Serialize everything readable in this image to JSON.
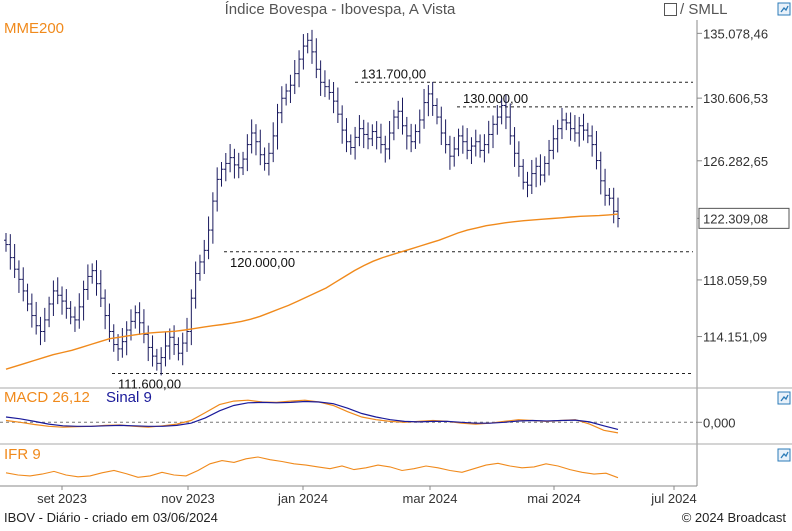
{
  "header": {
    "title": "Índice Bovespa - Ibovespa, A Vista",
    "compare_label": "/ SMLL"
  },
  "footer": {
    "left": "IBOV - Diário - criado em 03/06/2024",
    "right": "© 2024 Broadcast"
  },
  "colors": {
    "price": "#1a1a5e",
    "mme": "#f08a1c",
    "macd": "#1a1a9a",
    "signal": "#f08a1c",
    "ifr": "#f08a1c",
    "axis": "#888888",
    "icon": "#2b7bb8"
  },
  "chart_data": [
    {
      "type": "line",
      "panel": "price",
      "subtype": "ohlc",
      "indicator_label": "MME200",
      "y_ticks": [
        "135.078,46",
        "130.606,53",
        "126.282,65",
        "122.309,08",
        "118.059,59",
        "114.151,09"
      ],
      "y_tick_values": [
        135078.46,
        130606.53,
        126282.65,
        122309.08,
        118059.59,
        114151.09
      ],
      "last_price_label": "122.309,08",
      "levels": [
        {
          "label": "131.700,00",
          "value": 131700
        },
        {
          "label": "130.000,00",
          "value": 130000
        },
        {
          "label": "120.000,00",
          "value": 120000
        },
        {
          "label": "111.600,00",
          "value": 111600
        }
      ],
      "price_closes": [
        120500,
        119600,
        118800,
        118100,
        117300,
        116400,
        115600,
        114900,
        114500,
        115300,
        116400,
        117300,
        117000,
        116600,
        116100,
        115500,
        115300,
        116200,
        117400,
        118300,
        118700,
        117800,
        116800,
        115600,
        114500,
        113600,
        113300,
        113800,
        114600,
        115200,
        115800,
        115100,
        114300,
        113400,
        112800,
        112300,
        112700,
        113500,
        114100,
        113600,
        113000,
        113700,
        114500,
        116800,
        118500,
        119300,
        120100,
        121500,
        123500,
        125000,
        125700,
        126100,
        126500,
        126000,
        125800,
        126400,
        127400,
        128200,
        127600,
        126700,
        126100,
        126800,
        128000,
        129600,
        130600,
        131100,
        131500,
        132300,
        133300,
        134200,
        134600,
        133800,
        132600,
        131700,
        131400,
        131000,
        130400,
        129500,
        128400,
        127600,
        127200,
        127900,
        128500,
        128100,
        127800,
        128300,
        127900,
        127400,
        127100,
        128200,
        129300,
        129700,
        128700,
        128000,
        127600,
        128300,
        129100,
        130300,
        130900,
        130100,
        129300,
        128200,
        127400,
        126600,
        127100,
        128000,
        127600,
        127000,
        127300,
        127600,
        127000,
        127400,
        128100,
        128800,
        129300,
        130100,
        129300,
        128000,
        126800,
        125900,
        124800,
        124600,
        125400,
        125900,
        125300,
        126100,
        127000,
        127800,
        128500,
        129100,
        128900,
        128500,
        128200,
        128700,
        128400,
        128000,
        127400,
        126300,
        124900,
        123900,
        123700,
        122800,
        122300
      ],
      "mme200": [
        111900,
        112100,
        112300,
        112500,
        112700,
        112900,
        113050,
        113200,
        113400,
        113600,
        113800,
        114000,
        114100,
        114200,
        114300,
        114380,
        114440,
        114480,
        114520,
        114600,
        114700,
        114800,
        114900,
        114980,
        115080,
        115200,
        115350,
        115550,
        115800,
        116050,
        116300,
        116600,
        116900,
        117200,
        117500,
        117900,
        118300,
        118700,
        119050,
        119350,
        119600,
        119800,
        120000,
        120200,
        120400,
        120600,
        120800,
        121050,
        121300,
        121500,
        121650,
        121800,
        121900,
        122000,
        122080,
        122150,
        122200,
        122250,
        122300,
        122350,
        122400,
        122450,
        122480,
        122500,
        122550,
        122600
      ],
      "months": [
        "set 2023",
        "nov 2023",
        "jan 2024",
        "mar 2024",
        "mai 2024",
        "jul 2024"
      ]
    },
    {
      "type": "line",
      "panel": "macd",
      "title": "MACD 26,12",
      "signal_label": "Sinal 9",
      "y_ticks": [
        "0,000"
      ],
      "series": [
        {
          "name": "MACD 26,12",
          "values": [
            0.2,
            0.0,
            -0.25,
            -0.45,
            -0.55,
            -0.5,
            -0.45,
            -0.35,
            -0.3,
            -0.45,
            -0.55,
            -0.4,
            -0.2,
            0.2,
            1.1,
            2.0,
            2.4,
            2.5,
            2.3,
            2.25,
            2.4,
            2.5,
            2.3,
            1.9,
            1.2,
            0.6,
            0.3,
            0.1,
            0.0,
            0.1,
            0.2,
            0.1,
            -0.1,
            -0.2,
            -0.1,
            0.1,
            0.3,
            0.2,
            0.1,
            0.2,
            0.3,
            -0.2,
            -0.9,
            -1.2
          ]
        },
        {
          "name": "Sinal 9",
          "values": [
            0.6,
            0.4,
            0.1,
            -0.2,
            -0.4,
            -0.45,
            -0.45,
            -0.4,
            -0.35,
            -0.4,
            -0.45,
            -0.45,
            -0.35,
            -0.1,
            0.5,
            1.3,
            1.9,
            2.2,
            2.25,
            2.2,
            2.25,
            2.35,
            2.3,
            2.1,
            1.6,
            1.0,
            0.6,
            0.3,
            0.1,
            0.05,
            0.1,
            0.1,
            0.0,
            -0.1,
            -0.1,
            0.0,
            0.15,
            0.2,
            0.15,
            0.2,
            0.25,
            0.05,
            -0.4,
            -0.8
          ]
        }
      ]
    },
    {
      "type": "line",
      "panel": "ifr",
      "title": "IFR 9",
      "series": [
        {
          "name": "IFR 9",
          "values": [
            35,
            30,
            28,
            32,
            38,
            30,
            26,
            28,
            35,
            40,
            33,
            25,
            28,
            36,
            30,
            28,
            40,
            55,
            62,
            58,
            66,
            70,
            64,
            60,
            55,
            52,
            48,
            44,
            50,
            42,
            46,
            52,
            48,
            40,
            44,
            50,
            46,
            40,
            36,
            44,
            52,
            56,
            50,
            46,
            48,
            55,
            50,
            42,
            36,
            32,
            34,
            24
          ]
        }
      ]
    }
  ]
}
